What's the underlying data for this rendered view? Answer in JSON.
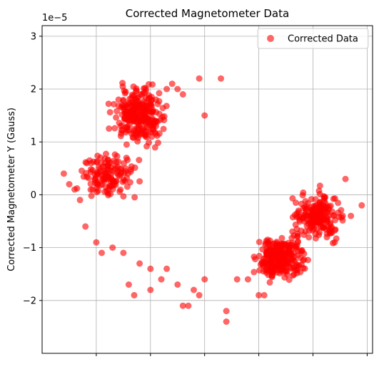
{
  "chart_data": {
    "type": "scatter",
    "title": "Corrected Magnetometer Data",
    "xlabel": "",
    "ylabel": "Corrected Magnetometer Y (Gauss)",
    "y_offset_text": "1e−5",
    "ylim": [
      -3e-05,
      3.2e-05
    ],
    "yticks": [
      -2e-05,
      -1e-05,
      0,
      1e-05,
      2e-05,
      3e-05
    ],
    "ytick_labels": [
      "−2",
      "−1",
      "0",
      "1",
      "2",
      "3"
    ],
    "xlim": [
      -1.0,
      5.1
    ],
    "xticks": [
      0,
      1,
      2,
      3,
      4,
      5
    ],
    "xtick_labels": [
      "",
      "",
      "",
      "",
      "",
      ""
    ],
    "grid": true,
    "legend": {
      "position": "top-right",
      "entries": [
        "Corrected Data"
      ]
    },
    "series": [
      {
        "name": "Corrected Data",
        "color": "#ff0000",
        "alpha": 0.6,
        "points": [
          [
            -0.2,
            -6e-06
          ],
          [
            0.0,
            -9e-06
          ],
          [
            0.3,
            -1e-05
          ],
          [
            0.1,
            -1.1e-05
          ],
          [
            0.5,
            -1.1e-05
          ],
          [
            0.6,
            -1.7e-05
          ],
          [
            0.7,
            -1.9e-05
          ],
          [
            0.8,
            -1.3e-05
          ],
          [
            1.0,
            -1.4e-05
          ],
          [
            1.0,
            -1.8e-05
          ],
          [
            1.2,
            -1.6e-05
          ],
          [
            1.3,
            -1.4e-05
          ],
          [
            1.5,
            -1.7e-05
          ],
          [
            1.7,
            -2.1e-05
          ],
          [
            1.6,
            -2.1e-05
          ],
          [
            1.8,
            -1.8e-05
          ],
          [
            1.9,
            -1.9e-05
          ],
          [
            2.0,
            -1.6e-05
          ],
          [
            2.4,
            -2.2e-05
          ],
          [
            2.6,
            -1.6e-05
          ],
          [
            2.8,
            -1.6e-05
          ],
          [
            3.0,
            -1.9e-05
          ],
          [
            3.1,
            -1.9e-05
          ],
          [
            2.4,
            -2.4e-05
          ],
          [
            1.1,
            1.8e-05
          ],
          [
            1.0,
            1.7e-05
          ],
          [
            1.3,
            2e-05
          ],
          [
            1.4,
            2.1e-05
          ],
          [
            1.5,
            2e-05
          ],
          [
            1.6,
            1.9e-05
          ],
          [
            1.9,
            2.2e-05
          ],
          [
            2.0,
            1.5e-05
          ],
          [
            2.3,
            2.2e-05
          ],
          [
            -0.5,
            2e-06
          ],
          [
            -0.6,
            4e-06
          ],
          [
            -0.4,
            1e-06
          ],
          [
            -0.3,
            -1e-06
          ],
          [
            4.4,
            -9e-06
          ],
          [
            4.7,
            -4e-06
          ],
          [
            4.9,
            -2e-06
          ],
          [
            4.6,
            3e-06
          ]
        ],
        "clusters": [
          {
            "center": [
              0.8,
              1.5e-05
            ],
            "spread": [
              0.5,
              5.5e-06
            ],
            "count": 260
          },
          {
            "center": [
              0.2,
              3.5e-06
            ],
            "spread": [
              0.55,
              4.5e-06
            ],
            "count": 140
          },
          {
            "center": [
              3.4,
              -1.2e-05
            ],
            "spread": [
              0.45,
              4.5e-06
            ],
            "count": 260
          },
          {
            "center": [
              4.1,
              -4e-06
            ],
            "spread": [
              0.5,
              4.5e-06
            ],
            "count": 200
          }
        ]
      }
    ]
  }
}
